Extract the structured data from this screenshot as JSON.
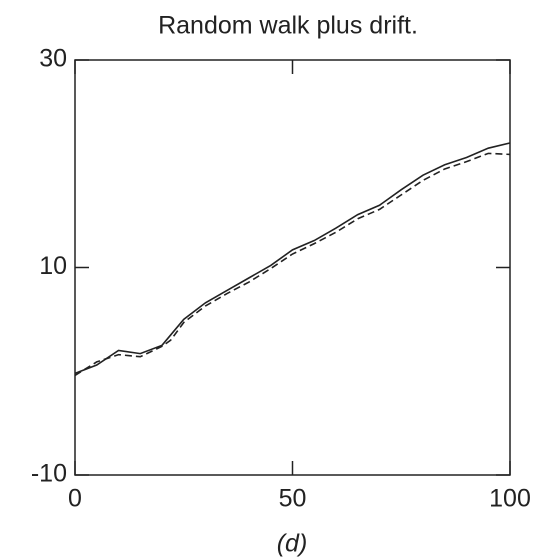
{
  "chart_data": {
    "type": "line",
    "title": "Random walk plus drift.",
    "xlabel": "(d)",
    "x": [
      0,
      5,
      10,
      15,
      20,
      22,
      25,
      30,
      35,
      40,
      45,
      50,
      55,
      60,
      65,
      70,
      75,
      80,
      85,
      90,
      95,
      100
    ],
    "series": [
      {
        "name": "solid",
        "color": "#222",
        "dash": false,
        "values": [
          -0.2,
          0.6,
          2.0,
          1.7,
          2.5,
          3.5,
          5.0,
          6.6,
          7.8,
          9.0,
          10.2,
          11.7,
          12.6,
          13.8,
          15.1,
          16.0,
          17.5,
          18.9,
          19.9,
          20.6,
          21.5,
          22.0
        ]
      },
      {
        "name": "dashed",
        "color": "#222",
        "dash": true,
        "values": [
          -0.4,
          0.9,
          1.6,
          1.4,
          2.4,
          3.0,
          4.7,
          6.3,
          7.5,
          8.6,
          9.9,
          11.3,
          12.3,
          13.4,
          14.7,
          15.6,
          17.0,
          18.4,
          19.5,
          20.2,
          21.0,
          20.9
        ]
      }
    ],
    "xlim": [
      0,
      100
    ],
    "xticks": [
      0,
      50,
      100
    ],
    "ylim": [
      -10,
      30
    ],
    "yticks": [
      -10,
      10,
      30
    ]
  }
}
